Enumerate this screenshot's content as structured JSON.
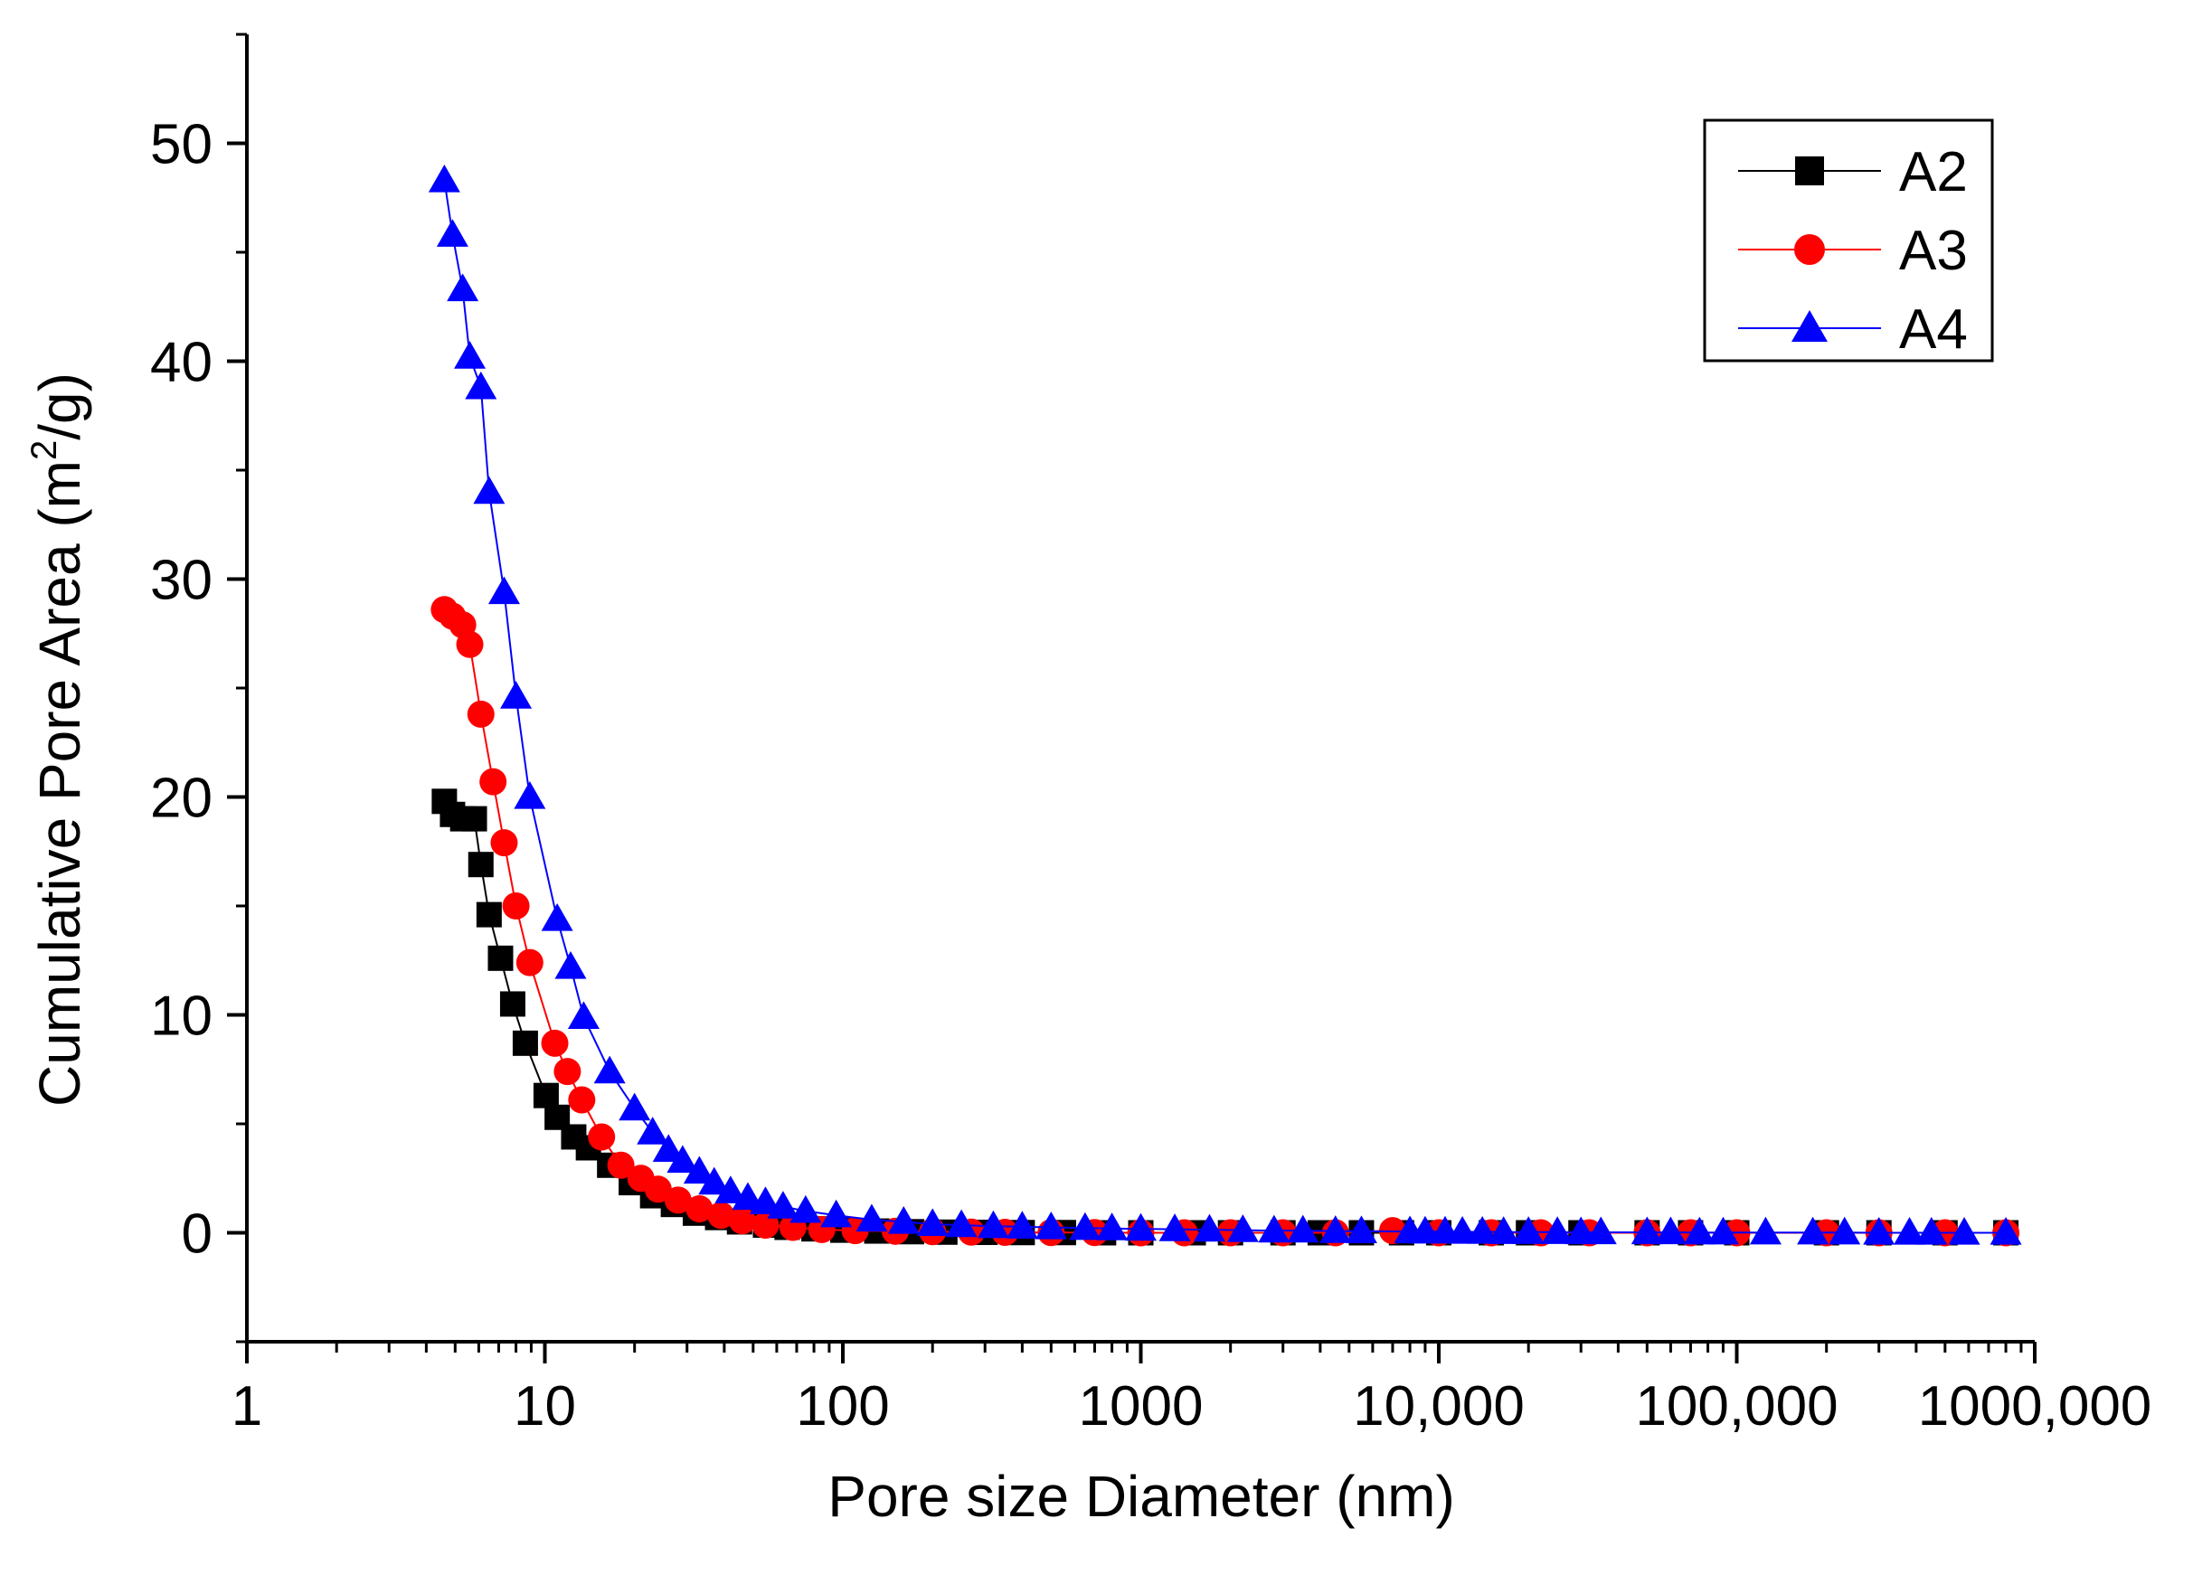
{
  "chart_data": {
    "type": "scatter",
    "title": "",
    "xlabel": "Pore size Diameter (nm)",
    "ylabel_main": "Cumulative Pore Area (m",
    "ylabel_sup": "2",
    "ylabel_end": "/g)",
    "xscale": "log",
    "xlim": [
      1,
      1000000
    ],
    "ylim": [
      -5,
      55
    ],
    "x_ticks": [
      {
        "value": 1,
        "label": "1"
      },
      {
        "value": 10,
        "label": "10"
      },
      {
        "value": 100,
        "label": "100"
      },
      {
        "value": 1000,
        "label": "1000"
      },
      {
        "value": 10000,
        "label": "10,000"
      },
      {
        "value": 100000,
        "label": "100,000"
      },
      {
        "value": 1000000,
        "label": "1000,000"
      }
    ],
    "y_ticks": [
      {
        "value": 0,
        "label": "0"
      },
      {
        "value": 10,
        "label": "10"
      },
      {
        "value": 20,
        "label": "20"
      },
      {
        "value": 30,
        "label": "30"
      },
      {
        "value": 40,
        "label": "40"
      },
      {
        "value": 50,
        "label": "50"
      }
    ],
    "legend_position": "top-right",
    "series": [
      {
        "name": "A2",
        "color": "#000000",
        "marker": "square",
        "x": [
          4.6,
          4.9,
          5.3,
          5.8,
          6.1,
          6.5,
          7.1,
          7.8,
          8.6,
          10.1,
          11.0,
          12.5,
          14.0,
          16.5,
          19.5,
          23,
          27,
          32,
          38,
          45,
          55,
          65,
          80,
          100,
          130,
          170,
          220,
          300,
          400,
          550,
          750,
          1000,
          1500,
          2000,
          3000,
          4000,
          5500,
          7500,
          10000,
          15000,
          20000,
          30000,
          50000,
          70000,
          100000,
          200000,
          300000,
          500000,
          800000
        ],
        "y": [
          19.8,
          19.2,
          19.0,
          19.0,
          16.9,
          14.6,
          12.6,
          10.5,
          8.7,
          6.3,
          5.3,
          4.4,
          3.9,
          3.1,
          2.3,
          1.7,
          1.3,
          0.9,
          0.7,
          0.5,
          0.35,
          0.25,
          0.18,
          0.12,
          0.08,
          0.05,
          0.03,
          0.02,
          0.01,
          0.01,
          0,
          0,
          0,
          0,
          0,
          0,
          0,
          0,
          0,
          0,
          0,
          0,
          0,
          0,
          0,
          0,
          0,
          0,
          0
        ]
      },
      {
        "name": "A3",
        "color": "#ff0000",
        "marker": "circle",
        "x": [
          4.6,
          4.9,
          5.3,
          5.6,
          6.1,
          6.7,
          7.3,
          8.0,
          8.9,
          10.8,
          11.9,
          13.3,
          15.5,
          18,
          21,
          24,
          28,
          33,
          39,
          46,
          55,
          68,
          85,
          110,
          150,
          200,
          270,
          350,
          500,
          700,
          1000,
          1400,
          2000,
          3000,
          4500,
          7000,
          10000,
          15000,
          22000,
          32000,
          50000,
          70000,
          100000,
          200000,
          300000,
          500000,
          800000
        ],
        "y": [
          28.6,
          28.3,
          27.9,
          27.0,
          23.8,
          20.7,
          17.9,
          15.0,
          12.4,
          8.7,
          7.4,
          6.1,
          4.4,
          3.1,
          2.5,
          2.0,
          1.5,
          1.1,
          0.8,
          0.55,
          0.35,
          0.25,
          0.15,
          0.1,
          0.07,
          0.05,
          0.03,
          0.02,
          0.01,
          0.01,
          0,
          0,
          0,
          0,
          0,
          0.1,
          0,
          0,
          0,
          0,
          0,
          0,
          0,
          0,
          0,
          0,
          0
        ]
      },
      {
        "name": "A4",
        "color": "#0000ff",
        "marker": "triangle",
        "x": [
          4.6,
          4.9,
          5.3,
          5.6,
          6.1,
          6.5,
          7.3,
          8.0,
          8.9,
          11.0,
          12.2,
          13.5,
          16.5,
          20,
          23,
          26,
          29,
          33,
          37,
          42,
          48,
          55,
          63,
          75,
          95,
          125,
          160,
          200,
          250,
          320,
          400,
          500,
          650,
          800,
          1000,
          1300,
          1700,
          2200,
          2800,
          3500,
          4500,
          5500,
          8000,
          9000,
          10500,
          12000,
          14000,
          16500,
          20000,
          25000,
          30000,
          35000,
          50000,
          60000,
          75000,
          90000,
          125000,
          180000,
          230000,
          300000,
          380000,
          450000,
          580000,
          800000
        ],
        "y": [
          48.3,
          45.8,
          43.3,
          40.2,
          38.8,
          34.0,
          29.4,
          24.6,
          20.0,
          14.4,
          12.2,
          9.9,
          7.4,
          5.7,
          4.6,
          3.8,
          3.3,
          2.8,
          2.3,
          1.9,
          1.6,
          1.4,
          1.2,
          1.0,
          0.8,
          0.6,
          0.5,
          0.4,
          0.35,
          0.3,
          0.28,
          0.25,
          0.22,
          0.2,
          0.18,
          0.16,
          0.14,
          0.12,
          0.1,
          0.1,
          0.08,
          0.07,
          0.06,
          0.05,
          0.05,
          0.04,
          0.04,
          0.03,
          0.03,
          0.03,
          0.02,
          0.02,
          0.02,
          0.02,
          0.01,
          0.01,
          0.01,
          0.01,
          0.01,
          0,
          0,
          0,
          0,
          0
        ]
      }
    ]
  }
}
